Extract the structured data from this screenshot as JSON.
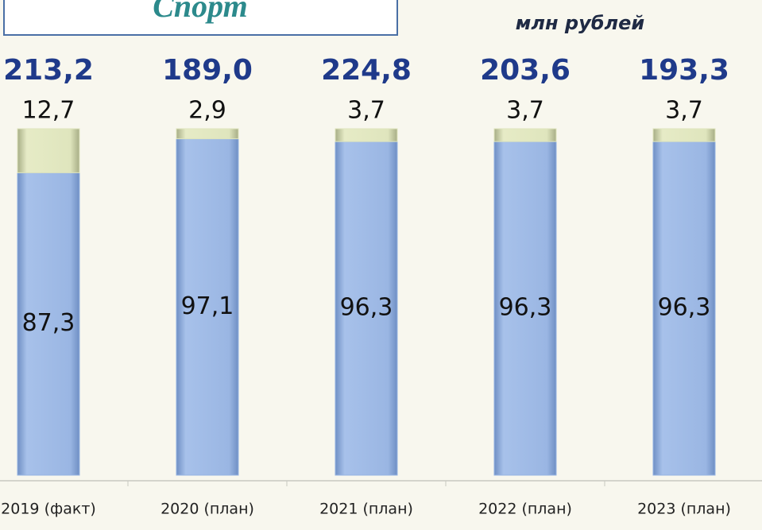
{
  "chart_data": {
    "type": "stacked-bar",
    "title": "Спорт",
    "subtitle": "млн рублей",
    "categories": [
      "2019 (факт)",
      "2020 (план)",
      "2021 (план)",
      "2022 (план)",
      "2023 (план)"
    ],
    "series": [
      {
        "color": "#95b3e3",
        "values": [
          87.3,
          97.1,
          96.3,
          96.3,
          96.3
        ],
        "value_labels": [
          "87,3",
          "97,1",
          "96,3",
          "96,3",
          "96,3"
        ]
      },
      {
        "color": "#dfe5bd",
        "values": [
          12.7,
          2.9,
          3.7,
          3.7,
          3.7
        ],
        "value_labels": [
          "12,7",
          "2,9",
          "3,7",
          "3,7",
          "3,7"
        ]
      }
    ],
    "totals": {
      "values": [
        213.2,
        189.0,
        224.8,
        203.6,
        193.3
      ],
      "value_labels": [
        "213,2",
        "189,0",
        "224,8",
        "203,6",
        "193,3"
      ]
    },
    "ylim": [
      0,
      100
    ]
  }
}
